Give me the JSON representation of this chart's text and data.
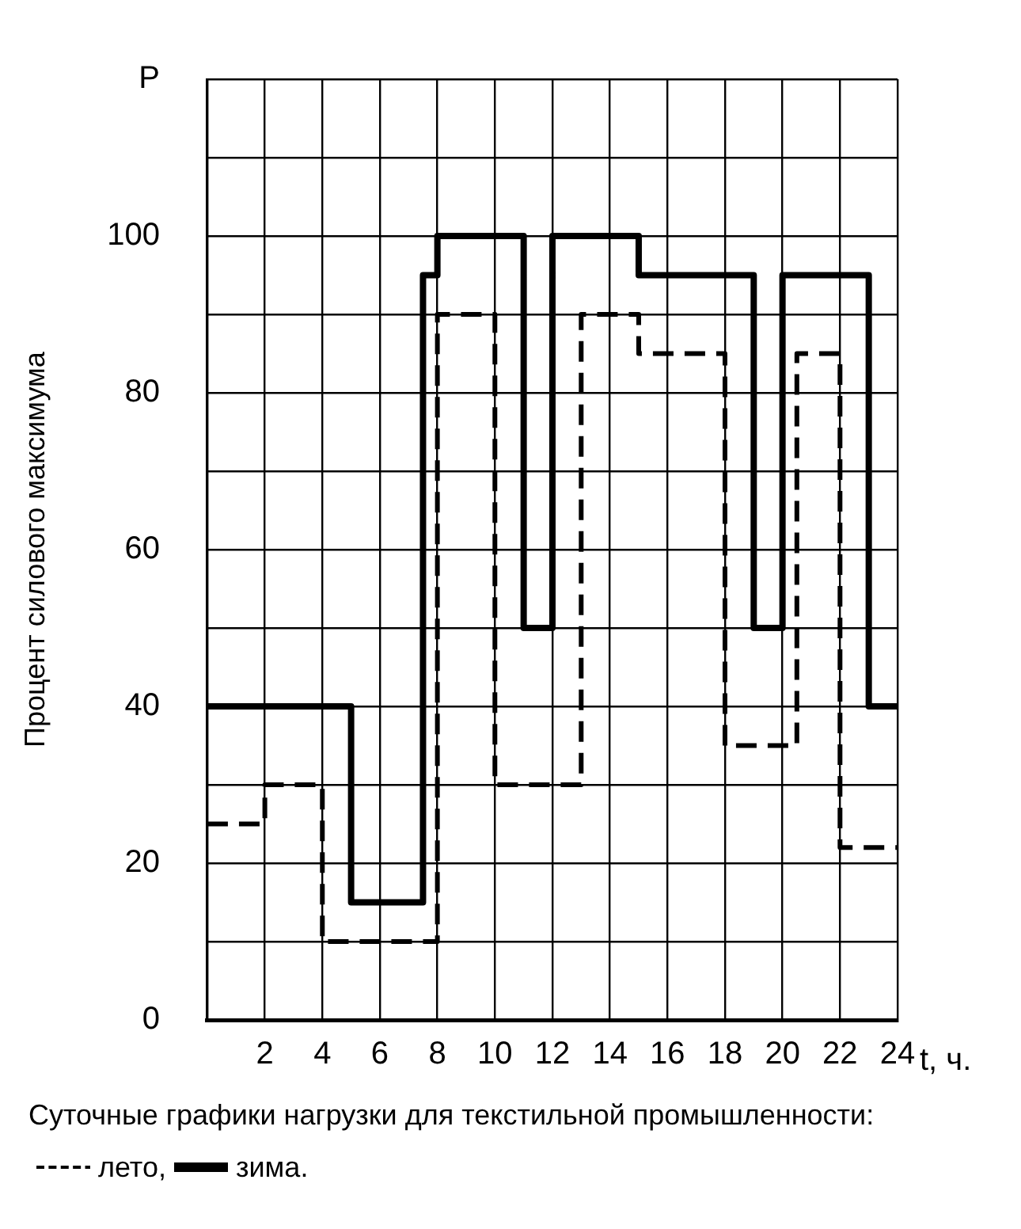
{
  "chart_data": {
    "type": "step",
    "xlabel": "t, ч.",
    "ylabel": "Процент силового максимума",
    "annotations": [
      "Суточные графики нагрузки для текстильной промышленности:",
      ",",
      "."
    ],
    "series": [
      {
        "name": "лето",
        "color": "#000000",
        "line_style": "dashed",
        "x": [
          0,
          2,
          4,
          8,
          10,
          13,
          15,
          18,
          20.5,
          22,
          24
        ],
        "values": [
          25,
          30,
          10,
          90,
          30,
          90,
          85,
          35,
          85,
          22,
          22
        ]
      },
      {
        "name": "зима",
        "color": "#000000",
        "line_style": "solid",
        "x": [
          0,
          5,
          7.5,
          8,
          11,
          12,
          15,
          19,
          20,
          23,
          24
        ],
        "values": [
          40,
          15,
          95,
          100,
          50,
          100,
          95,
          50,
          95,
          40,
          40
        ]
      }
    ],
    "xlim": [
      0,
      24
    ],
    "xticks": [
      {
        "value": 0,
        "label": null
      },
      2,
      4,
      6,
      8,
      10,
      12,
      14,
      16,
      18,
      20,
      22,
      24
    ],
    "ylim": [
      0,
      120
    ],
    "yticks": [
      0,
      {
        "value": 10,
        "label": null
      },
      20,
      {
        "value": 30,
        "label": null
      },
      40,
      {
        "value": 50,
        "label": null
      },
      60,
      {
        "value": 70,
        "label": null
      },
      80,
      {
        "value": 90,
        "label": null
      },
      100,
      {
        "value": 110,
        "label": null
      },
      {
        "value": 120,
        "label": "P"
      }
    ],
    "grid": true,
    "legend": "bottom",
    "marker": "none"
  }
}
